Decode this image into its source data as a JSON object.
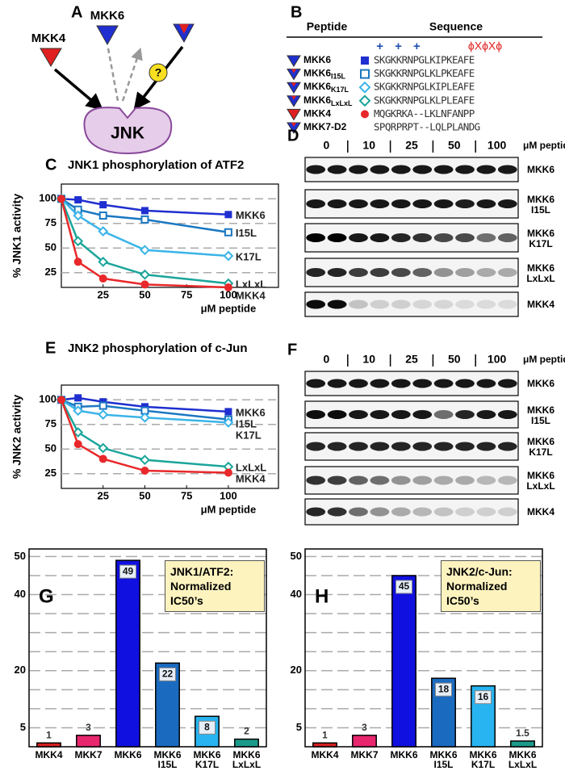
{
  "panel_a": {
    "label": "A",
    "kinases": [
      "MKK4",
      "MKK6"
    ],
    "target": "JNK",
    "question": "?"
  },
  "panel_b": {
    "label": "B",
    "headers": [
      "Peptide",
      "Sequence"
    ],
    "charges": "+ + +",
    "motif": "ϕXϕXϕ",
    "rows": [
      {
        "name": "MKK6",
        "sub": "",
        "sequence": "SKGKKRNPGLKIPKEAFE"
      },
      {
        "name": "MKK6",
        "sub": "I15L",
        "sequence": "SKGKKRNPGLKLPKEAFE"
      },
      {
        "name": "MKK6",
        "sub": "K17L",
        "sequence": "SKGKKRNPGLKIPLEAFE"
      },
      {
        "name": "MKK6",
        "sub": "LxLxL",
        "sequence": "SKGKKRNPGLKLPLEAFE"
      },
      {
        "name": "MKK4",
        "sub": "",
        "sequence": "MQGKRKA--LKLNFANPP"
      },
      {
        "name": "MKK7-D2",
        "sub": "",
        "sequence": "SPQRPRPT--LQLPLANDG"
      }
    ]
  },
  "panel_d": {
    "label": "D",
    "lanes": [
      0,
      10,
      25,
      50,
      100
    ],
    "unit": "μM peptide",
    "rows": [
      "MKK6",
      "MKK6 I15L",
      "MKK6 K17L",
      "MKK6 LxLxL",
      "MKK4"
    ]
  },
  "panel_f": {
    "label": "F",
    "lanes": [
      0,
      10,
      25,
      50,
      100
    ],
    "unit": "μM peptide",
    "rows": [
      "MKK6",
      "MKK6 I15L",
      "MKK6 K17L",
      "MKK6 LxLxL",
      "MKK4"
    ]
  },
  "chart_data": [
    {
      "type": "line",
      "panel": "C",
      "title": "JNK1 phosphorylation of ATF2",
      "ylabel": "% JNK1 activity",
      "xlabel": "μM peptide",
      "x": [
        0,
        10,
        25,
        50,
        100
      ],
      "xlim": [
        0,
        130
      ],
      "xticks": [
        25,
        50,
        75,
        100
      ],
      "ylim": [
        10,
        115
      ],
      "yticks": [
        25,
        50,
        75,
        100
      ],
      "grid": true,
      "series": [
        {
          "name": "MKK6",
          "color": "#1f2fd0",
          "marker": "square",
          "values": [
            100,
            99,
            94,
            88,
            84
          ]
        },
        {
          "name": "I15L",
          "color": "#1a78c2",
          "marker": "square-open",
          "values": [
            100,
            89,
            83,
            79,
            66
          ]
        },
        {
          "name": "K17L",
          "color": "#3ab4e8",
          "marker": "diamond-open",
          "values": [
            100,
            83,
            67,
            48,
            42
          ]
        },
        {
          "name": "LxLxL",
          "color": "#1aa59a",
          "marker": "diamond-open",
          "values": [
            100,
            57,
            36,
            23,
            14
          ]
        },
        {
          "name": "MKK4",
          "color": "#e8282a",
          "marker": "circle",
          "values": [
            100,
            36,
            19,
            13,
            10
          ]
        }
      ]
    },
    {
      "type": "line",
      "panel": "E",
      "title": "JNK2 phosphorylation of c-Jun",
      "ylabel": "% JNK2 activity",
      "xlabel": "μM peptide",
      "x": [
        0,
        10,
        25,
        50,
        100
      ],
      "xlim": [
        0,
        130
      ],
      "xticks": [
        25,
        50,
        75,
        100
      ],
      "ylim": [
        10,
        115
      ],
      "yticks": [
        25,
        50,
        75,
        100
      ],
      "grid": true,
      "series": [
        {
          "name": "MKK6",
          "color": "#1f2fd0",
          "marker": "square",
          "values": [
            100,
            102,
            98,
            93,
            88
          ]
        },
        {
          "name": "I15L",
          "color": "#1a78c2",
          "marker": "square-open",
          "values": [
            100,
            93,
            94,
            89,
            80
          ]
        },
        {
          "name": "K17L",
          "color": "#3ab4e8",
          "marker": "diamond-open",
          "values": [
            100,
            89,
            85,
            82,
            77
          ]
        },
        {
          "name": "LxLxL",
          "color": "#1aa59a",
          "marker": "diamond-open",
          "values": [
            100,
            67,
            51,
            39,
            32
          ]
        },
        {
          "name": "MKK4",
          "color": "#e8282a",
          "marker": "circle",
          "values": [
            100,
            55,
            40,
            28,
            26
          ]
        }
      ]
    },
    {
      "type": "bar",
      "panel": "G",
      "annotation": "JNK1/ATF2: Normalized IC50’s",
      "categories": [
        "MKK4",
        "MKK7",
        "MKK6",
        "MKK6 I15L",
        "MKK6 K17L",
        "MKK6 LxLxL"
      ],
      "values": [
        1,
        3,
        49,
        22,
        8,
        2
      ],
      "colors": [
        "#d42020",
        "#e8266e",
        "#1010e0",
        "#1a6bc0",
        "#28b4f0",
        "#1a9a8a"
      ],
      "ylim": [
        0,
        52
      ],
      "yticks": [
        5,
        20,
        40,
        50
      ],
      "minor_yticks": [
        10,
        15,
        25,
        30,
        35,
        45
      ],
      "grid": true
    },
    {
      "type": "bar",
      "panel": "H",
      "annotation": "JNK2/c-Jun: Normalized IC50’s",
      "categories": [
        "MKK4",
        "MKK7",
        "MKK6",
        "MKK6 I15L",
        "MKK6 K17L",
        "MKK6 LxLxL"
      ],
      "values": [
        1,
        3,
        45,
        18,
        16,
        1.5
      ],
      "colors": [
        "#d42020",
        "#e8266e",
        "#1010e0",
        "#1a6bc0",
        "#28b4f0",
        "#1a9a8a"
      ],
      "ylim": [
        0,
        52
      ],
      "yticks": [
        5,
        20,
        40,
        50
      ],
      "minor_yticks": [
        10,
        15,
        25,
        30,
        35,
        45
      ],
      "grid": true
    }
  ]
}
